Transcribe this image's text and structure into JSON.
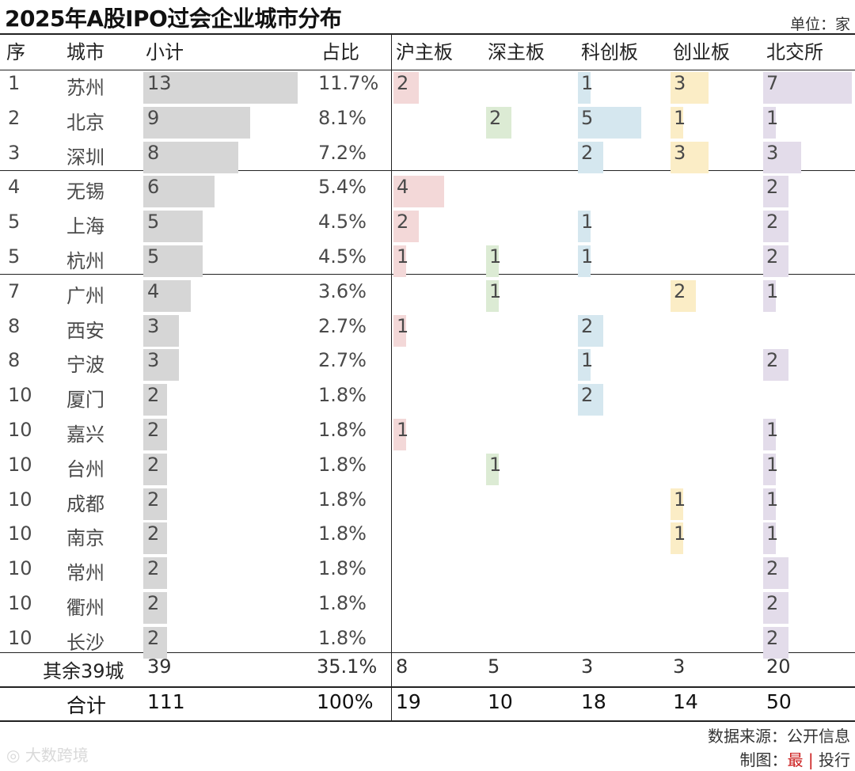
{
  "title": "2025年A股IPO过会企业城市分布",
  "unit_label": "单位：家",
  "headers": [
    "序",
    "城市",
    "小计",
    "占比",
    "沪主板",
    "深主板",
    "科创板",
    "创业板",
    "北交所"
  ],
  "chart_data": {
    "type": "table",
    "title": "2025年A股IPO过会企业城市分布",
    "unit": "家",
    "columns": [
      "序",
      "城市",
      "小计",
      "占比",
      "沪主板",
      "深主板",
      "科创板",
      "创业板",
      "北交所"
    ],
    "rows": [
      {
        "rank": "1",
        "city": "苏州",
        "subtotal": 13,
        "share": "11.7%",
        "sh": 2,
        "sz": null,
        "kc": 1,
        "cy": 3,
        "bj": 7
      },
      {
        "rank": "2",
        "city": "北京",
        "subtotal": 9,
        "share": "8.1%",
        "sh": null,
        "sz": 2,
        "kc": 5,
        "cy": 1,
        "bj": 1
      },
      {
        "rank": "3",
        "city": "深圳",
        "subtotal": 8,
        "share": "7.2%",
        "sh": null,
        "sz": null,
        "kc": 2,
        "cy": 3,
        "bj": 3
      },
      {
        "rank": "4",
        "city": "无锡",
        "subtotal": 6,
        "share": "5.4%",
        "sh": 4,
        "sz": null,
        "kc": null,
        "cy": null,
        "bj": 2
      },
      {
        "rank": "5",
        "city": "上海",
        "subtotal": 5,
        "share": "4.5%",
        "sh": 2,
        "sz": null,
        "kc": 1,
        "cy": null,
        "bj": 2
      },
      {
        "rank": "5",
        "city": "杭州",
        "subtotal": 5,
        "share": "4.5%",
        "sh": 1,
        "sz": 1,
        "kc": 1,
        "cy": null,
        "bj": 2
      },
      {
        "rank": "7",
        "city": "广州",
        "subtotal": 4,
        "share": "3.6%",
        "sh": null,
        "sz": 1,
        "kc": null,
        "cy": 2,
        "bj": 1
      },
      {
        "rank": "8",
        "city": "西安",
        "subtotal": 3,
        "share": "2.7%",
        "sh": 1,
        "sz": null,
        "kc": 2,
        "cy": null,
        "bj": null
      },
      {
        "rank": "8",
        "city": "宁波",
        "subtotal": 3,
        "share": "2.7%",
        "sh": null,
        "sz": null,
        "kc": 1,
        "cy": null,
        "bj": 2
      },
      {
        "rank": "10",
        "city": "厦门",
        "subtotal": 2,
        "share": "1.8%",
        "sh": null,
        "sz": null,
        "kc": 2,
        "cy": null,
        "bj": null
      },
      {
        "rank": "10",
        "city": "嘉兴",
        "subtotal": 2,
        "share": "1.8%",
        "sh": 1,
        "sz": null,
        "kc": null,
        "cy": null,
        "bj": 1
      },
      {
        "rank": "10",
        "city": "台州",
        "subtotal": 2,
        "share": "1.8%",
        "sh": null,
        "sz": 1,
        "kc": null,
        "cy": null,
        "bj": 1
      },
      {
        "rank": "10",
        "city": "成都",
        "subtotal": 2,
        "share": "1.8%",
        "sh": null,
        "sz": null,
        "kc": null,
        "cy": 1,
        "bj": 1
      },
      {
        "rank": "10",
        "city": "南京",
        "subtotal": 2,
        "share": "1.8%",
        "sh": null,
        "sz": null,
        "kc": null,
        "cy": 1,
        "bj": 1
      },
      {
        "rank": "10",
        "city": "常州",
        "subtotal": 2,
        "share": "1.8%",
        "sh": null,
        "sz": null,
        "kc": null,
        "cy": null,
        "bj": 2
      },
      {
        "rank": "10",
        "city": "衢州",
        "subtotal": 2,
        "share": "1.8%",
        "sh": null,
        "sz": null,
        "kc": null,
        "cy": null,
        "bj": 2
      },
      {
        "rank": "10",
        "city": "长沙",
        "subtotal": 2,
        "share": "1.8%",
        "sh": null,
        "sz": null,
        "kc": null,
        "cy": null,
        "bj": 2
      }
    ],
    "others": {
      "label": "其余39城",
      "subtotal": "39",
      "share": "35.1%",
      "sh": "8",
      "sz": "5",
      "kc": "3",
      "cy": "3",
      "bj": "20"
    },
    "total": {
      "label": "合计",
      "subtotal": "111",
      "share": "100%",
      "sh": "19",
      "sz": "10",
      "kc": "18",
      "cy": "14",
      "bj": "50"
    }
  },
  "footer": {
    "source": "数据来源：公开信息",
    "credit_prefix": "制图：",
    "credit_brand": "最",
    "credit_sep": "|",
    "credit_suffix": "投行"
  },
  "watermark": "大数跨境",
  "colors": {
    "subtotal_bar": "#d6d6d6",
    "sh_bar": "#f3d8d8",
    "sz_bar": "#dcebd4",
    "kc_bar": "#d5e7ef",
    "cy_bar": "#fbedc6",
    "bj_bar": "#e3dcea",
    "brand_red": "#cc1f1f"
  }
}
